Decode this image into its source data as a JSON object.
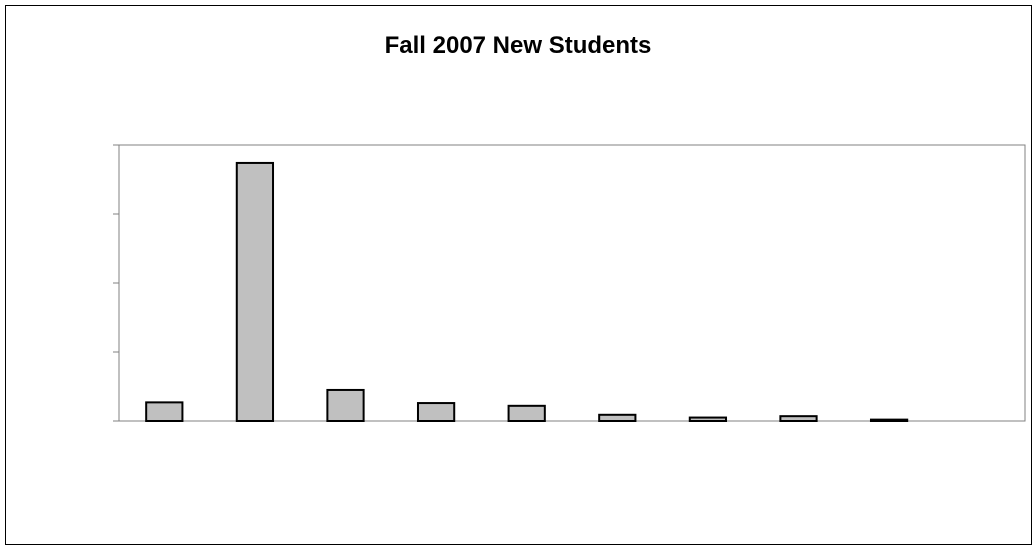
{
  "chart_data": {
    "type": "bar",
    "title": "Fall 2007 New Students",
    "xlabel": "",
    "ylabel": "",
    "categories": [
      "",
      "",
      "",
      "",
      "",
      "",
      "",
      "",
      ""
    ],
    "values": [
      27,
      374,
      45,
      26,
      22,
      9,
      5,
      7,
      2
    ],
    "ylim": [
      0,
      400
    ],
    "yticks": [
      0,
      100,
      200,
      300,
      400
    ],
    "grid": false,
    "legend": "none",
    "colors": {
      "bar_fill": "#c0c0c0",
      "bar_stroke": "#000000",
      "axis": "#808080"
    }
  }
}
